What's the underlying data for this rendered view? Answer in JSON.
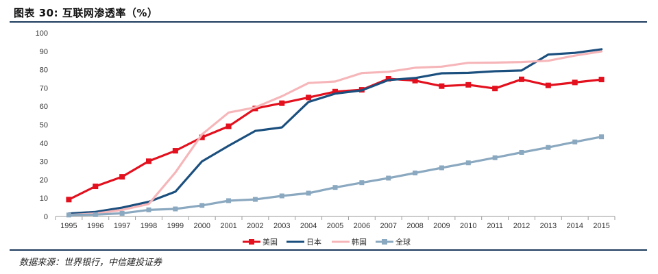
{
  "figure": {
    "title": "图表 30: 互联网渗透率（%）",
    "source": "数据来源：世界银行，中信建投证券"
  },
  "chart_data": {
    "type": "line",
    "title": "",
    "xlabel": "",
    "ylabel": "",
    "x": [
      "1995",
      "1996",
      "1997",
      "1998",
      "1999",
      "2000",
      "2001",
      "2002",
      "2003",
      "2004",
      "2005",
      "2006",
      "2007",
      "2008",
      "2009",
      "2010",
      "2011",
      "2012",
      "2013",
      "2014",
      "2015"
    ],
    "ylim": [
      0,
      100
    ],
    "yticks": [
      0,
      10,
      20,
      30,
      40,
      50,
      60,
      70,
      80,
      90,
      100
    ],
    "grid": false,
    "legend_position": "bottom",
    "series": [
      {
        "name": "美国",
        "color": "#e3101e",
        "marker": "square",
        "values": [
          9.2,
          16.4,
          21.6,
          30.1,
          35.8,
          43.1,
          49.1,
          58.8,
          61.7,
          64.8,
          68.0,
          69.0,
          75.0,
          74.0,
          71.0,
          71.7,
          69.7,
          74.7,
          71.4,
          73.0,
          74.6
        ]
      },
      {
        "name": "日本",
        "color": "#1b4f7e",
        "marker": "none",
        "values": [
          1.6,
          2.5,
          4.8,
          8.0,
          13.5,
          30.0,
          38.5,
          46.6,
          48.5,
          62.4,
          66.9,
          68.7,
          74.3,
          75.4,
          78.0,
          78.2,
          79.1,
          79.5,
          88.2,
          89.1,
          91.1
        ]
      },
      {
        "name": "韩国",
        "color": "#f6b6b9",
        "marker": "none",
        "values": [
          0.8,
          1.6,
          3.6,
          6.8,
          24.0,
          44.7,
          56.6,
          59.4,
          65.5,
          72.7,
          73.5,
          78.1,
          78.8,
          81.0,
          81.6,
          83.7,
          83.8,
          84.1,
          84.8,
          87.6,
          89.9
        ]
      },
      {
        "name": "全球",
        "color": "#8aa8bf",
        "marker": "square",
        "values": [
          0.8,
          1.0,
          1.7,
          3.6,
          4.1,
          6.0,
          8.6,
          9.3,
          11.2,
          12.7,
          15.8,
          18.4,
          20.9,
          23.7,
          26.5,
          29.2,
          32.0,
          34.9,
          37.6,
          40.6,
          43.4
        ]
      }
    ]
  }
}
